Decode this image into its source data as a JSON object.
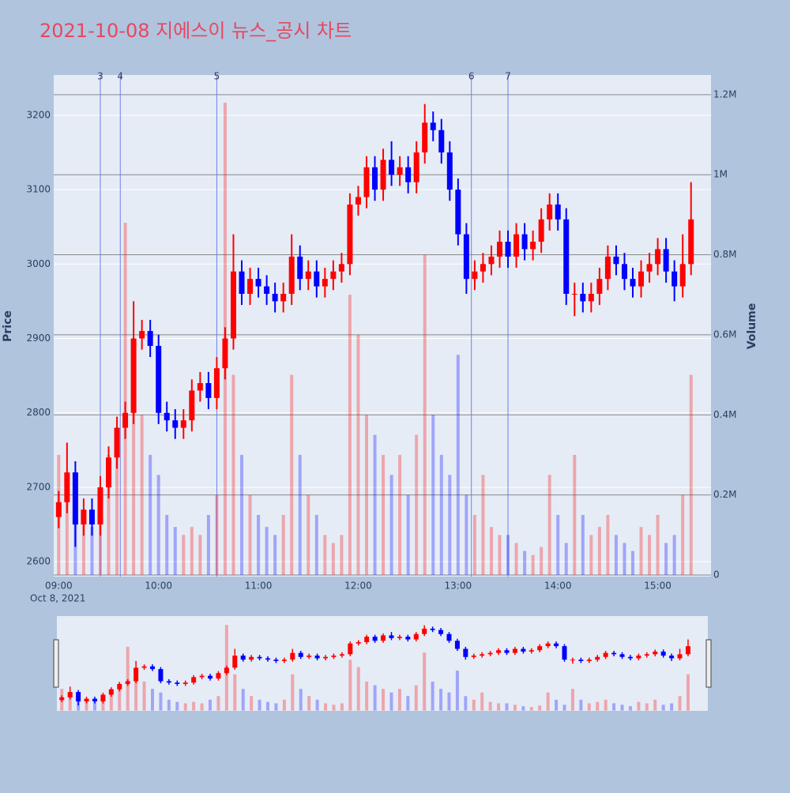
{
  "chart_data": {
    "type": "candlestick",
    "title": "2021-10-08 지에스이 뉴스_공시 차트",
    "x": [
      "09:00",
      "09:05",
      "09:10",
      "09:15",
      "09:20",
      "09:25",
      "09:30",
      "09:35",
      "09:40",
      "09:45",
      "09:50",
      "09:55",
      "10:00",
      "10:05",
      "10:10",
      "10:15",
      "10:20",
      "10:25",
      "10:30",
      "10:35",
      "10:40",
      "10:45",
      "10:50",
      "10:55",
      "11:00",
      "11:05",
      "11:10",
      "11:15",
      "11:20",
      "11:25",
      "11:30",
      "11:35",
      "11:40",
      "11:45",
      "11:50",
      "11:55",
      "12:00",
      "12:05",
      "12:10",
      "12:15",
      "12:20",
      "12:25",
      "12:30",
      "12:35",
      "12:40",
      "12:45",
      "12:50",
      "12:55",
      "13:00",
      "13:05",
      "13:10",
      "13:15",
      "13:20",
      "13:25",
      "13:30",
      "13:35",
      "13:40",
      "13:45",
      "13:50",
      "13:55",
      "14:00",
      "14:05",
      "14:10",
      "14:15",
      "14:20",
      "14:25",
      "14:30",
      "14:35",
      "14:40",
      "14:45",
      "14:50",
      "14:55",
      "15:00",
      "15:05",
      "15:10",
      "15:15",
      "15:20"
    ],
    "open": [
      2660,
      2680,
      2720,
      2650,
      2670,
      2650,
      2700,
      2740,
      2780,
      2800,
      2900,
      2910,
      2890,
      2800,
      2790,
      2780,
      2790,
      2830,
      2840,
      2820,
      2860,
      2900,
      2990,
      2960,
      2980,
      2970,
      2960,
      2950,
      2960,
      3010,
      2980,
      2990,
      2970,
      2980,
      2990,
      3000,
      3080,
      3090,
      3130,
      3100,
      3140,
      3120,
      3130,
      3110,
      3150,
      3190,
      3180,
      3150,
      3100,
      3040,
      2980,
      2990,
      3000,
      3010,
      3030,
      3010,
      3040,
      3020,
      3030,
      3060,
      3080,
      3060,
      2960,
      2960,
      2950,
      2960,
      2980,
      3010,
      3000,
      2980,
      2970,
      2990,
      3000,
      3020,
      2990,
      2970,
      3000
    ],
    "high": [
      2695,
      2760,
      2735,
      2685,
      2685,
      2715,
      2755,
      2795,
      2815,
      2950,
      2925,
      2925,
      2905,
      2815,
      2805,
      2805,
      2845,
      2855,
      2855,
      2875,
      2915,
      3040,
      3005,
      2995,
      2995,
      2985,
      2975,
      2975,
      3040,
      3025,
      3005,
      3005,
      2995,
      3005,
      3015,
      3095,
      3105,
      3145,
      3145,
      3155,
      3165,
      3145,
      3145,
      3165,
      3215,
      3205,
      3195,
      3165,
      3115,
      3055,
      3005,
      3015,
      3025,
      3045,
      3045,
      3055,
      3055,
      3045,
      3075,
      3095,
      3095,
      3075,
      2975,
      2975,
      2975,
      2995,
      3025,
      3025,
      3015,
      2995,
      3005,
      3015,
      3035,
      3035,
      3005,
      3040,
      3110
    ],
    "low": [
      2645,
      2665,
      2620,
      2635,
      2635,
      2635,
      2685,
      2725,
      2765,
      2785,
      2885,
      2875,
      2785,
      2775,
      2765,
      2765,
      2775,
      2815,
      2805,
      2805,
      2845,
      2885,
      2945,
      2945,
      2955,
      2945,
      2935,
      2935,
      2945,
      2965,
      2965,
      2955,
      2955,
      2965,
      2975,
      2985,
      3065,
      3075,
      3085,
      3085,
      3105,
      3105,
      3095,
      3095,
      3135,
      3165,
      3135,
      3085,
      3025,
      2960,
      2965,
      2975,
      2985,
      2995,
      2995,
      2995,
      3005,
      3005,
      3015,
      3045,
      3045,
      2945,
      2930,
      2935,
      2935,
      2945,
      2965,
      2985,
      2965,
      2955,
      2955,
      2975,
      2985,
      2975,
      2950,
      2955,
      2985
    ],
    "close": [
      2680,
      2720,
      2650,
      2670,
      2650,
      2700,
      2740,
      2780,
      2800,
      2900,
      2910,
      2890,
      2800,
      2790,
      2780,
      2790,
      2830,
      2840,
      2820,
      2860,
      2900,
      2990,
      2960,
      2980,
      2970,
      2960,
      2950,
      2960,
      3010,
      2980,
      2990,
      2970,
      2980,
      2990,
      3000,
      3080,
      3090,
      3130,
      3100,
      3140,
      3120,
      3130,
      3110,
      3150,
      3190,
      3180,
      3150,
      3100,
      3040,
      2980,
      2990,
      3000,
      3010,
      3030,
      3010,
      3040,
      3020,
      3030,
      3060,
      3080,
      3060,
      2960,
      2960,
      2950,
      2960,
      2980,
      3010,
      3000,
      2980,
      2970,
      2990,
      3000,
      3020,
      2990,
      2970,
      3000,
      3060
    ],
    "volume": [
      300000,
      250000,
      200000,
      150000,
      120000,
      200000,
      300000,
      350000,
      880000,
      500000,
      400000,
      300000,
      250000,
      150000,
      120000,
      100000,
      120000,
      100000,
      150000,
      200000,
      1180000,
      500000,
      300000,
      200000,
      150000,
      120000,
      100000,
      150000,
      500000,
      300000,
      200000,
      150000,
      100000,
      80000,
      100000,
      700000,
      600000,
      400000,
      350000,
      300000,
      250000,
      300000,
      200000,
      350000,
      800000,
      400000,
      300000,
      250000,
      550000,
      200000,
      150000,
      250000,
      120000,
      100000,
      100000,
      80000,
      60000,
      50000,
      70000,
      250000,
      150000,
      80000,
      300000,
      150000,
      100000,
      120000,
      150000,
      100000,
      80000,
      60000,
      120000,
      100000,
      150000,
      80000,
      100000,
      200000,
      500000
    ],
    "increasing_color": "#ff0000",
    "decreasing_color": "#0000ff",
    "xlim": [
      "08:57",
      "15:32"
    ],
    "xticks": [
      "09:00",
      "10:00",
      "11:00",
      "12:00",
      "13:00",
      "14:00",
      "15:00"
    ],
    "x_date_label": "Oct 8, 2021",
    "ylim": [
      2580,
      3254
    ],
    "yticks": [
      2600,
      2700,
      2800,
      2900,
      3000,
      3100,
      3200
    ],
    "y_label": "Price",
    "y2lim": [
      -4000,
      1249000
    ],
    "y2ticks": [
      0,
      {
        "value": 200000,
        "label": "0.2M"
      },
      {
        "value": 400000,
        "label": "0.4M"
      },
      {
        "value": 600000,
        "label": "0.6M"
      },
      {
        "value": 800000,
        "label": "0.8M"
      },
      {
        "value": 1000000,
        "label": "1M"
      },
      {
        "value": 1200000,
        "label": "1.2M"
      }
    ],
    "y2_label": "Volume",
    "annotations": [
      {
        "x": "09:25",
        "label": "3"
      },
      {
        "x": "09:37",
        "label": "4"
      },
      {
        "x": "10:35",
        "label": "5"
      },
      {
        "x": "13:08",
        "label": "6"
      },
      {
        "x": "13:30",
        "label": "7"
      }
    ],
    "rangeslider": true
  }
}
